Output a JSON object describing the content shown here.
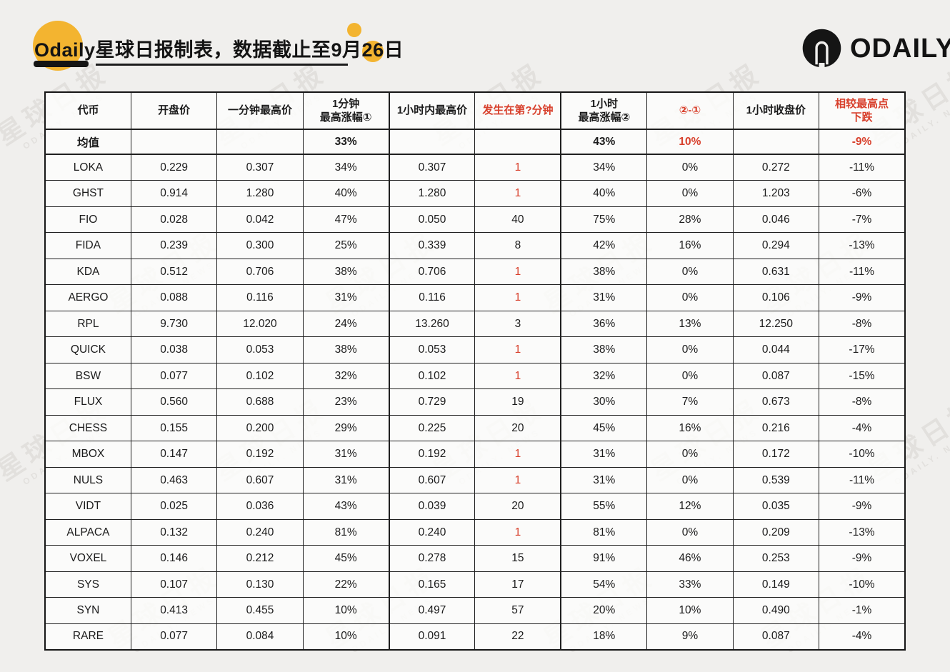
{
  "page": {
    "background": "#f0efed"
  },
  "colors": {
    "accent_yellow": "#f3b430",
    "accent_red": "#d8402c",
    "ink": "#1a1a1a"
  },
  "header": {
    "title_prefix": "Odaily星球日报制表，数据截止至9月",
    "title_day": "26",
    "title_suffix": "日",
    "logo_text": "ODAILY"
  },
  "watermark": {
    "line1": "星球日报",
    "line2": "ODAILY. NEWS"
  },
  "chart_data": {
    "type": "table",
    "title": "Odaily星球日报制表，数据截止至9月26日",
    "columns": [
      {
        "lines": [
          "代币"
        ],
        "red": false
      },
      {
        "lines": [
          "开盘价"
        ],
        "red": false
      },
      {
        "lines": [
          "一分钟最高价"
        ],
        "red": false
      },
      {
        "lines": [
          "1分钟",
          "最高涨幅①"
        ],
        "red": false
      },
      {
        "lines": [
          "1小时内最高价"
        ],
        "red": false
      },
      {
        "lines": [
          "发生在第?分钟"
        ],
        "red": true
      },
      {
        "lines": [
          "1小时",
          "最高涨幅②"
        ],
        "red": false
      },
      {
        "lines": [
          "②-①"
        ],
        "red": true
      },
      {
        "lines": [
          "1小时收盘价"
        ],
        "red": false
      },
      {
        "lines": [
          "相较最高点",
          "下跌"
        ],
        "red": true
      }
    ],
    "mean_row": {
      "cells": [
        "均值",
        "",
        "",
        "33%",
        "",
        "",
        "43%",
        "10%",
        "",
        "-9%"
      ],
      "red_indices": [
        7,
        9
      ]
    },
    "rows": [
      [
        "LOKA",
        "0.229",
        "0.307",
        "34%",
        "0.307",
        "1",
        "34%",
        "0%",
        "0.272",
        "-11%"
      ],
      [
        "GHST",
        "0.914",
        "1.280",
        "40%",
        "1.280",
        "1",
        "40%",
        "0%",
        "1.203",
        "-6%"
      ],
      [
        "FIO",
        "0.028",
        "0.042",
        "47%",
        "0.050",
        "40",
        "75%",
        "28%",
        "0.046",
        "-7%"
      ],
      [
        "FIDA",
        "0.239",
        "0.300",
        "25%",
        "0.339",
        "8",
        "42%",
        "16%",
        "0.294",
        "-13%"
      ],
      [
        "KDA",
        "0.512",
        "0.706",
        "38%",
        "0.706",
        "1",
        "38%",
        "0%",
        "0.631",
        "-11%"
      ],
      [
        "AERGO",
        "0.088",
        "0.116",
        "31%",
        "0.116",
        "1",
        "31%",
        "0%",
        "0.106",
        "-9%"
      ],
      [
        "RPL",
        "9.730",
        "12.020",
        "24%",
        "13.260",
        "3",
        "36%",
        "13%",
        "12.250",
        "-8%"
      ],
      [
        "QUICK",
        "0.038",
        "0.053",
        "38%",
        "0.053",
        "1",
        "38%",
        "0%",
        "0.044",
        "-17%"
      ],
      [
        "BSW",
        "0.077",
        "0.102",
        "32%",
        "0.102",
        "1",
        "32%",
        "0%",
        "0.087",
        "-15%"
      ],
      [
        "FLUX",
        "0.560",
        "0.688",
        "23%",
        "0.729",
        "19",
        "30%",
        "7%",
        "0.673",
        "-8%"
      ],
      [
        "CHESS",
        "0.155",
        "0.200",
        "29%",
        "0.225",
        "20",
        "45%",
        "16%",
        "0.216",
        "-4%"
      ],
      [
        "MBOX",
        "0.147",
        "0.192",
        "31%",
        "0.192",
        "1",
        "31%",
        "0%",
        "0.172",
        "-10%"
      ],
      [
        "NULS",
        "0.463",
        "0.607",
        "31%",
        "0.607",
        "1",
        "31%",
        "0%",
        "0.539",
        "-11%"
      ],
      [
        "VIDT",
        "0.025",
        "0.036",
        "43%",
        "0.039",
        "20",
        "55%",
        "12%",
        "0.035",
        "-9%"
      ],
      [
        "ALPACA",
        "0.132",
        "0.240",
        "81%",
        "0.240",
        "1",
        "81%",
        "0%",
        "0.209",
        "-13%"
      ],
      [
        "VOXEL",
        "0.146",
        "0.212",
        "45%",
        "0.278",
        "15",
        "91%",
        "46%",
        "0.253",
        "-9%"
      ],
      [
        "SYS",
        "0.107",
        "0.130",
        "22%",
        "0.165",
        "17",
        "54%",
        "33%",
        "0.149",
        "-10%"
      ],
      [
        "SYN",
        "0.413",
        "0.455",
        "10%",
        "0.497",
        "57",
        "20%",
        "10%",
        "0.490",
        "-1%"
      ],
      [
        "RARE",
        "0.077",
        "0.084",
        "10%",
        "0.091",
        "22",
        "18%",
        "9%",
        "0.087",
        "-4%"
      ]
    ],
    "red_minute_value": "1",
    "layout": {
      "grid": true,
      "header_red_columns": [
        5,
        7,
        9
      ]
    }
  }
}
